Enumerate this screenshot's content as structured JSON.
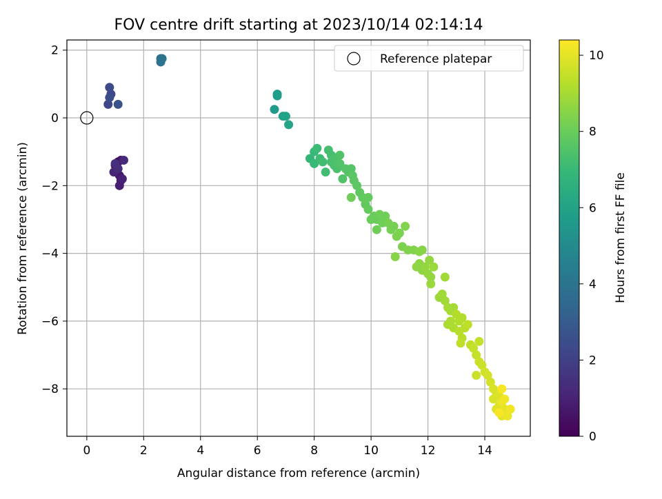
{
  "chart_data": {
    "type": "scatter",
    "title": "FOV centre drift starting at 2023/10/14 02:14:14",
    "xlabel": "Angular distance from reference (arcmin)",
    "ylabel": "Rotation from reference (arcmin)",
    "xlim": [
      -0.7,
      15.6
    ],
    "ylim": [
      -9.4,
      2.3
    ],
    "grid": true,
    "x_ticks": [
      0,
      2,
      4,
      6,
      8,
      10,
      12,
      14
    ],
    "y_ticks": [
      2,
      0,
      -2,
      -4,
      -6,
      -8
    ],
    "legend": {
      "position": "top-right",
      "entries": [
        "Reference platepar"
      ]
    },
    "reference_point": {
      "x": 0,
      "y": 0
    },
    "colorbar": {
      "label": "Hours from first FF file",
      "range": [
        0,
        10.4
      ],
      "ticks": [
        0,
        2,
        4,
        6,
        8,
        10
      ],
      "colormap": "viridis",
      "colors": [
        "#440154",
        "#482878",
        "#3e4989",
        "#31688e",
        "#26828e",
        "#1f9e89",
        "#35b779",
        "#6ece58",
        "#b5de2b",
        "#fde725"
      ]
    },
    "points": [
      [
        1.1,
        -1.3,
        0.3
      ],
      [
        1.0,
        -1.4,
        0.4
      ],
      [
        1.2,
        -1.25,
        0.5
      ],
      [
        1.05,
        -1.6,
        0.6
      ],
      [
        1.15,
        -1.7,
        0.7
      ],
      [
        1.2,
        -1.85,
        0.8
      ],
      [
        1.15,
        -2.0,
        0.9
      ],
      [
        1.25,
        -1.8,
        1.0
      ],
      [
        0.95,
        -1.6,
        1.1
      ],
      [
        1.3,
        -1.25,
        1.2
      ],
      [
        1.1,
        -1.5,
        1.3
      ],
      [
        1.0,
        -1.35,
        1.4
      ],
      [
        0.75,
        0.4,
        2.2
      ],
      [
        0.85,
        0.7,
        2.3
      ],
      [
        0.8,
        0.9,
        2.4
      ],
      [
        0.8,
        0.6,
        2.5
      ],
      [
        1.1,
        0.4,
        2.6
      ],
      [
        2.6,
        1.75,
        3.8
      ],
      [
        2.6,
        1.65,
        3.9
      ],
      [
        2.65,
        1.75,
        4.0
      ],
      [
        6.6,
        0.25,
        5.6
      ],
      [
        6.7,
        0.7,
        5.7
      ],
      [
        6.7,
        0.65,
        5.8
      ],
      [
        6.9,
        0.05,
        5.9
      ],
      [
        7.0,
        0.05,
        6.0
      ],
      [
        7.1,
        -0.2,
        6.1
      ],
      [
        7.85,
        -1.2,
        6.9
      ],
      [
        8.0,
        -1.0,
        7.0
      ],
      [
        8.0,
        -1.35,
        7.0
      ],
      [
        8.1,
        -0.9,
        7.1
      ],
      [
        8.2,
        -1.2,
        7.1
      ],
      [
        8.3,
        -1.3,
        7.2
      ],
      [
        8.4,
        -1.6,
        7.2
      ],
      [
        8.5,
        -0.95,
        7.3
      ],
      [
        8.6,
        -1.1,
        7.3
      ],
      [
        8.6,
        -1.3,
        7.3
      ],
      [
        8.7,
        -1.4,
        7.4
      ],
      [
        8.7,
        -1.2,
        7.4
      ],
      [
        8.8,
        -1.5,
        7.4
      ],
      [
        8.9,
        -1.1,
        7.5
      ],
      [
        8.9,
        -1.35,
        7.5
      ],
      [
        9.0,
        -1.8,
        7.5
      ],
      [
        9.1,
        -1.5,
        7.6
      ],
      [
        9.2,
        -1.6,
        7.6
      ],
      [
        9.3,
        -1.5,
        7.6
      ],
      [
        9.35,
        -1.7,
        7.7
      ],
      [
        9.4,
        -1.85,
        7.7
      ],
      [
        9.5,
        -2.0,
        7.7
      ],
      [
        9.6,
        -2.2,
        7.8
      ],
      [
        9.7,
        -2.35,
        7.8
      ],
      [
        9.8,
        -2.55,
        7.8
      ],
      [
        9.9,
        -2.7,
        7.9
      ],
      [
        9.8,
        -2.4,
        7.9
      ],
      [
        9.9,
        -2.35,
        7.9
      ],
      [
        10.0,
        -3.0,
        8.0
      ],
      [
        10.1,
        -2.9,
        8.0
      ],
      [
        10.2,
        -3.0,
        8.0
      ],
      [
        10.3,
        -2.85,
        8.1
      ],
      [
        10.4,
        -3.1,
        8.1
      ],
      [
        10.5,
        -2.9,
        8.1
      ],
      [
        10.2,
        -3.3,
        8.1
      ],
      [
        9.3,
        -2.35,
        8.1
      ],
      [
        10.6,
        -3.1,
        8.2
      ],
      [
        10.7,
        -3.3,
        8.2
      ],
      [
        10.8,
        -3.2,
        8.2
      ],
      [
        10.9,
        -3.5,
        8.3
      ],
      [
        11.0,
        -3.4,
        8.3
      ],
      [
        11.1,
        -3.8,
        8.3
      ],
      [
        11.2,
        -3.2,
        8.4
      ],
      [
        11.3,
        -3.9,
        8.4
      ],
      [
        11.5,
        -3.9,
        8.4
      ],
      [
        10.85,
        -4.1,
        8.5
      ],
      [
        11.7,
        -3.95,
        8.5
      ],
      [
        11.8,
        -3.9,
        8.5
      ],
      [
        11.6,
        -4.4,
        8.6
      ],
      [
        11.7,
        -4.3,
        8.6
      ],
      [
        11.8,
        -4.5,
        8.6
      ],
      [
        11.9,
        -4.4,
        8.7
      ],
      [
        12.0,
        -4.6,
        8.7
      ],
      [
        12.1,
        -4.7,
        8.7
      ],
      [
        12.05,
        -4.2,
        8.7
      ],
      [
        12.1,
        -4.9,
        8.8
      ],
      [
        12.2,
        -4.4,
        8.8
      ],
      [
        12.4,
        -5.3,
        8.8
      ],
      [
        12.5,
        -5.2,
        8.9
      ],
      [
        12.6,
        -5.4,
        8.9
      ],
      [
        12.6,
        -4.7,
        8.9
      ],
      [
        12.7,
        -5.6,
        9.0
      ],
      [
        12.8,
        -5.7,
        9.0
      ],
      [
        12.9,
        -5.6,
        9.0
      ],
      [
        12.7,
        -6.1,
        9.1
      ],
      [
        12.8,
        -6.0,
        9.1
      ],
      [
        12.9,
        -6.2,
        9.1
      ],
      [
        13.0,
        -5.8,
        9.2
      ],
      [
        13.1,
        -6.0,
        9.2
      ],
      [
        13.2,
        -5.9,
        9.2
      ],
      [
        13.1,
        -6.3,
        9.3
      ],
      [
        13.2,
        -6.5,
        9.3
      ],
      [
        13.3,
        -6.2,
        9.3
      ],
      [
        13.4,
        -6.1,
        9.4
      ],
      [
        13.5,
        -6.7,
        9.4
      ],
      [
        13.15,
        -6.65,
        9.4
      ],
      [
        13.6,
        -6.8,
        9.5
      ],
      [
        13.8,
        -6.6,
        9.5
      ],
      [
        13.7,
        -7.0,
        9.5
      ],
      [
        13.8,
        -7.2,
        9.6
      ],
      [
        13.9,
        -7.3,
        9.6
      ],
      [
        13.7,
        -7.6,
        9.6
      ],
      [
        14.0,
        -7.5,
        9.7
      ],
      [
        14.1,
        -7.6,
        9.7
      ],
      [
        14.2,
        -7.8,
        9.7
      ],
      [
        14.3,
        -8.0,
        9.8
      ],
      [
        14.3,
        -8.3,
        9.8
      ],
      [
        14.4,
        -8.1,
        9.8
      ],
      [
        14.5,
        -8.2,
        9.9
      ],
      [
        14.4,
        -8.6,
        9.9
      ],
      [
        14.5,
        -8.5,
        9.9
      ],
      [
        14.6,
        -8.8,
        10.0
      ],
      [
        14.7,
        -8.6,
        10.0
      ],
      [
        14.8,
        -8.8,
        10.1
      ],
      [
        14.6,
        -8.4,
        10.1
      ],
      [
        14.7,
        -8.3,
        10.2
      ],
      [
        14.9,
        -8.6,
        10.2
      ],
      [
        14.5,
        -8.7,
        10.3
      ],
      [
        14.6,
        -8.0,
        10.3
      ]
    ]
  }
}
